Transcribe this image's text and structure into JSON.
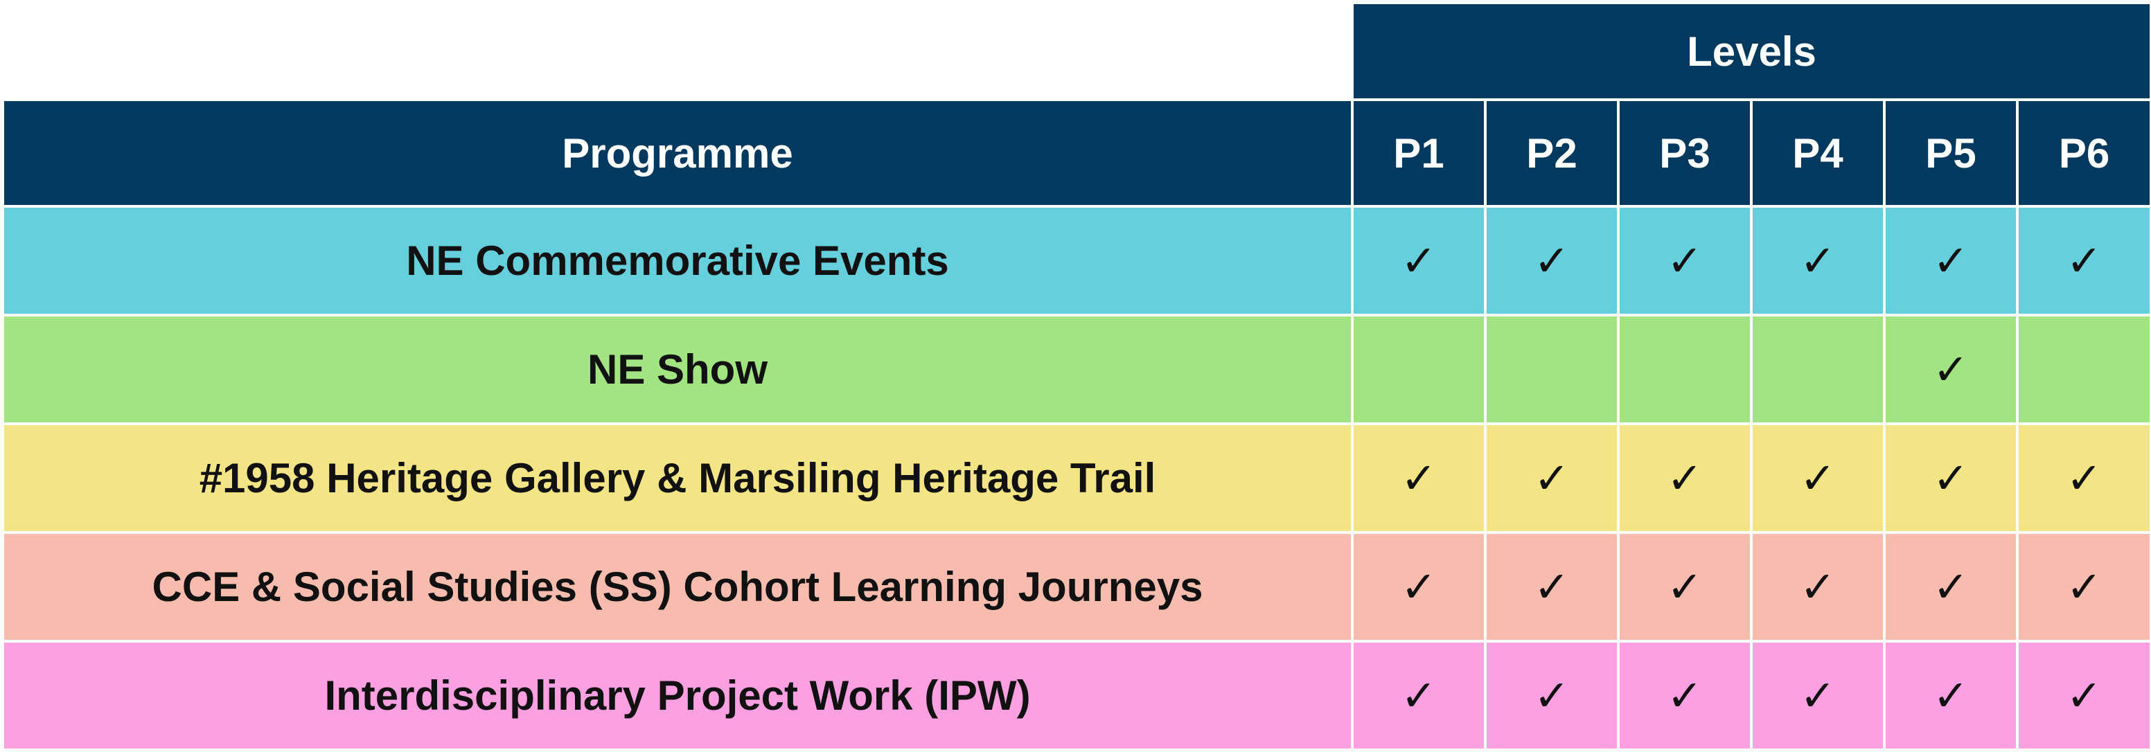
{
  "table": {
    "levels_label": "Levels",
    "programme_label": "Programme",
    "level_headers": [
      "P1",
      "P2",
      "P3",
      "P4",
      "P5",
      "P6"
    ],
    "tick_symbol": "✓",
    "rows": [
      {
        "programme": "NE Commemorative Events",
        "color": "#66cfdc",
        "marks": [
          "✓",
          "✓",
          "✓",
          "✓",
          "✓",
          "✓"
        ]
      },
      {
        "programme": "NE Show",
        "color": "#a1e481",
        "marks": [
          "",
          "",
          "",
          "",
          "✓",
          ""
        ]
      },
      {
        "programme": "#1958 Heritage Gallery & Marsiling Heritage Trail",
        "color": "#f3e586",
        "marks": [
          "✓",
          "✓",
          "✓",
          "✓",
          "✓",
          "✓"
        ]
      },
      {
        "programme": "CCE & Social Studies (SS) Cohort Learning Journeys",
        "color": "#f8bcae",
        "marks": [
          "✓",
          "✓",
          "✓",
          "✓",
          "✓",
          "✓"
        ]
      },
      {
        "programme": "Interdisciplinary Project Work (IPW)",
        "color": "#fca0e2",
        "marks": [
          "✓",
          "✓",
          "✓",
          "✓",
          "✓",
          "✓"
        ]
      }
    ]
  },
  "colors": {
    "header_bg": "#02395e",
    "header_text": "#ffffff"
  }
}
